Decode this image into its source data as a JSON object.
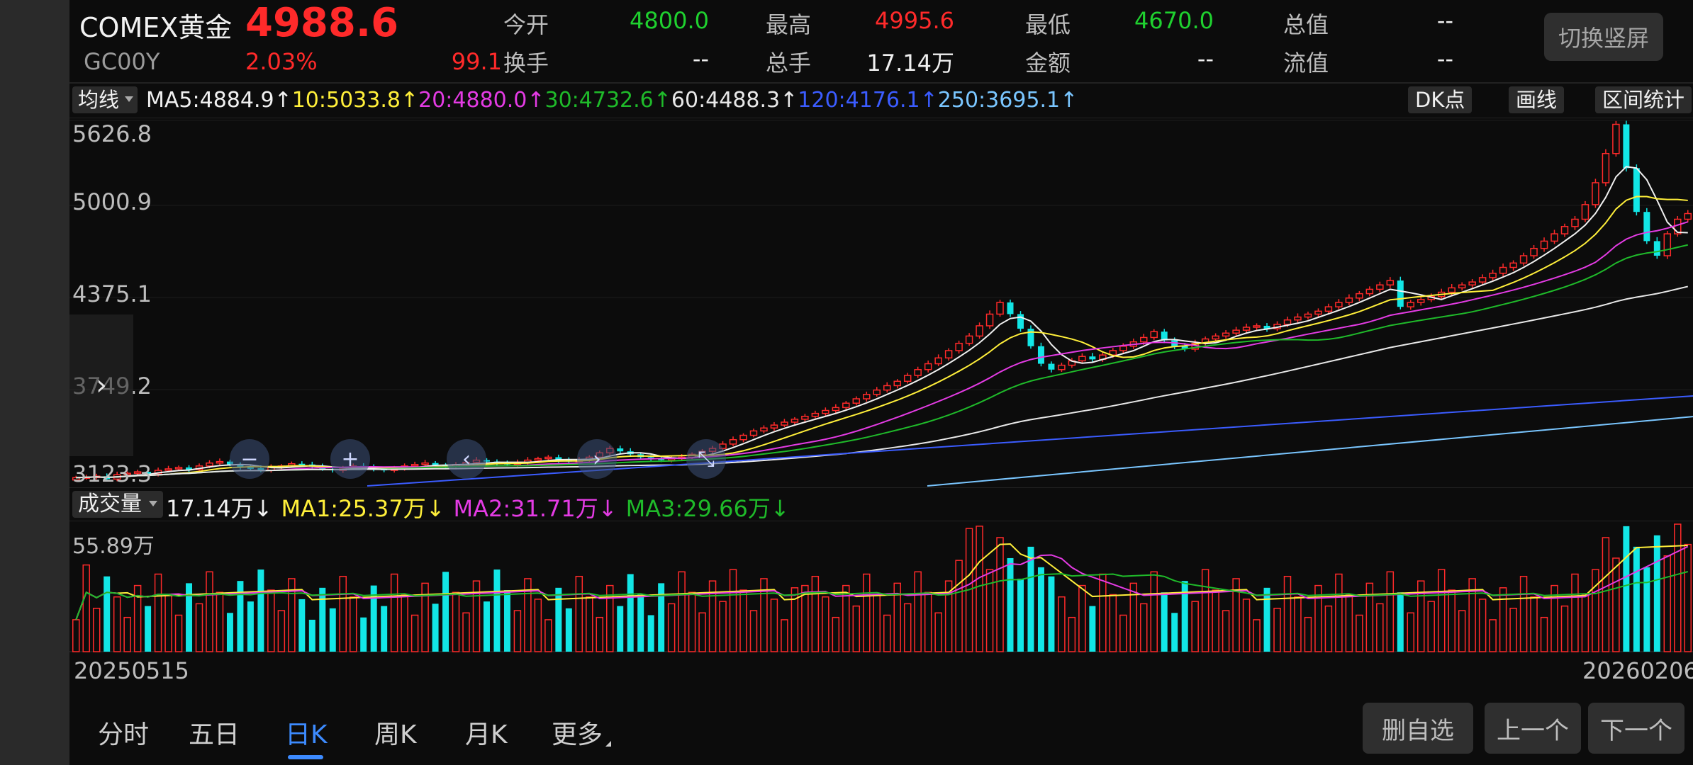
{
  "header": {
    "name": "COMEX黄金",
    "code": "GC00Y",
    "price": "4988.6",
    "pct": "2.03%",
    "change": "99.1",
    "stats": [
      {
        "k": "今开",
        "v": "4800.0",
        "c": "green"
      },
      {
        "k": "最高",
        "v": "4995.6",
        "c": "red"
      },
      {
        "k": "最低",
        "v": "4670.0",
        "c": "green"
      },
      {
        "k": "总值",
        "v": "--",
        "c": "white"
      },
      {
        "k": "换手",
        "v": "--",
        "c": "white"
      },
      {
        "k": "总手",
        "v": "17.14万",
        "c": "white"
      },
      {
        "k": "金额",
        "v": "--",
        "c": "white"
      },
      {
        "k": "流值",
        "v": "--",
        "c": "white"
      }
    ],
    "switch_label": "切换竖屏"
  },
  "ma_bar": {
    "select_label": "均线",
    "items": [
      {
        "text": "MA5:4884.9↑",
        "color": "#f0f0f0"
      },
      {
        "text": "10:5033.8↑",
        "color": "#ffef3a"
      },
      {
        "text": "20:4880.0↑",
        "color": "#e43be4"
      },
      {
        "text": "30:4732.6↑",
        "color": "#1fba2a"
      },
      {
        "text": "60:4488.3↑",
        "color": "#e8e8e8"
      },
      {
        "text": "120:4176.1↑",
        "color": "#3b5cff"
      },
      {
        "text": "250:3695.1↑",
        "color": "#7ac6ff"
      }
    ],
    "tools": {
      "dk": "DK点",
      "draw": "画线",
      "stats": "区间统计"
    }
  },
  "y_labels": [
    "5626.8",
    "5000.9",
    "4375.1",
    "3749.2",
    "3123.3"
  ],
  "vol_bar": {
    "select_label": "成交量",
    "items": [
      {
        "text": "17.14万↓",
        "color": "#f0f0f0"
      },
      {
        "text": "MA1:25.37万↓",
        "color": "#ffef3a"
      },
      {
        "text": "MA2:31.71万↓",
        "color": "#e43be4"
      },
      {
        "text": "MA3:29.66万↓",
        "color": "#1fba2a"
      }
    ],
    "max_label": "55.89万"
  },
  "dates": {
    "start": "20250515",
    "end": "20260206"
  },
  "tabs": [
    "分时",
    "五日",
    "日K",
    "周K",
    "月K",
    "更多"
  ],
  "active_tab": "日K",
  "buttons": {
    "remove": "删自选",
    "prev": "上一个",
    "next": "下一个"
  },
  "colors": {
    "up": "#ff2a2a",
    "down": "#12e6e6",
    "bg": "#0c0c0c",
    "accent": "#3d8bff"
  },
  "chart_data": {
    "type": "candlestick",
    "ylim": [
      3123.3,
      5626.8
    ],
    "y_ticks": [
      5626.8,
      5000.9,
      4375.1,
      3749.2,
      3123.3
    ],
    "candles": [
      3180,
      3185,
      3190,
      3170,
      3200,
      3210,
      3220,
      3205,
      3230,
      3240,
      3250,
      3235,
      3260,
      3280,
      3290,
      3270,
      3250,
      3245,
      3230,
      3250,
      3260,
      3275,
      3270,
      3255,
      3240,
      3230,
      3245,
      3260,
      3250,
      3240,
      3230,
      3245,
      3260,
      3270,
      3280,
      3265,
      3255,
      3270,
      3285,
      3300,
      3290,
      3280,
      3270,
      3285,
      3300,
      3310,
      3320,
      3300,
      3290,
      3300,
      3320,
      3350,
      3380,
      3360,
      3340,
      3320,
      3310,
      3300,
      3310,
      3320,
      3340,
      3360,
      3380,
      3410,
      3440,
      3470,
      3500,
      3520,
      3540,
      3560,
      3580,
      3600,
      3620,
      3640,
      3660,
      3690,
      3720,
      3750,
      3780,
      3810,
      3840,
      3880,
      3920,
      3960,
      4000,
      4050,
      4100,
      4150,
      4220,
      4300,
      4380,
      4300,
      4200,
      4080,
      3960,
      3920,
      3950,
      3980,
      4010,
      3990,
      4020,
      4050,
      4080,
      4110,
      4140,
      4180,
      4120,
      4080,
      4060,
      4100,
      4130,
      4150,
      4170,
      4190,
      4210,
      4220,
      4200,
      4230,
      4260,
      4280,
      4300,
      4320,
      4350,
      4380,
      4410,
      4440,
      4470,
      4500,
      4530,
      4350,
      4380,
      4400,
      4420,
      4450,
      4480,
      4500,
      4520,
      4550,
      4580,
      4620,
      4650,
      4700,
      4750,
      4800,
      4850,
      4900,
      4950,
      5050,
      5200,
      5400,
      5600,
      5300,
      5000,
      4800,
      4700,
      4850,
      4950,
      4988.6
    ],
    "volume_ylim": [
      0,
      55.89
    ],
    "volume_ma_labels": [
      "MA1",
      "MA2",
      "MA3"
    ]
  }
}
